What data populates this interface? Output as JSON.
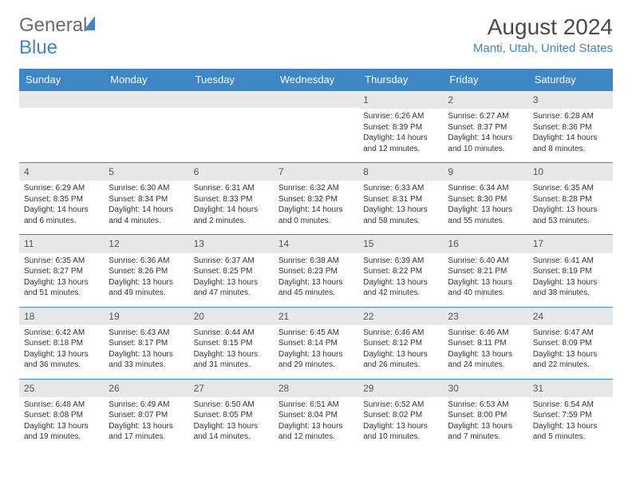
{
  "logo": {
    "text1": "General",
    "text2": "Blue"
  },
  "title": "August 2024",
  "location": "Manti, Utah, United States",
  "colors": {
    "header_bg": "#3e87c4",
    "header_text": "#ffffff",
    "daynum_bg": "#e8e8e8",
    "rule": "#3e87c4",
    "logo_gray": "#6b6b6b",
    "logo_blue": "#3e87c4",
    "title_color": "#4a4a4a",
    "location_color": "#3e87c4",
    "body_text": "#333333"
  },
  "typography": {
    "title_fontsize": 28,
    "location_fontsize": 15,
    "dayheader_fontsize": 13,
    "daynum_fontsize": 12,
    "body_fontsize": 10
  },
  "day_headers": [
    "Sunday",
    "Monday",
    "Tuesday",
    "Wednesday",
    "Thursday",
    "Friday",
    "Saturday"
  ],
  "weeks": [
    [
      null,
      null,
      null,
      null,
      {
        "n": "1",
        "sr": "Sunrise: 6:26 AM",
        "ss": "Sunset: 8:39 PM",
        "dl1": "Daylight: 14 hours",
        "dl2": "and 12 minutes."
      },
      {
        "n": "2",
        "sr": "Sunrise: 6:27 AM",
        "ss": "Sunset: 8:37 PM",
        "dl1": "Daylight: 14 hours",
        "dl2": "and 10 minutes."
      },
      {
        "n": "3",
        "sr": "Sunrise: 6:28 AM",
        "ss": "Sunset: 8:36 PM",
        "dl1": "Daylight: 14 hours",
        "dl2": "and 8 minutes."
      }
    ],
    [
      {
        "n": "4",
        "sr": "Sunrise: 6:29 AM",
        "ss": "Sunset: 8:35 PM",
        "dl1": "Daylight: 14 hours",
        "dl2": "and 6 minutes."
      },
      {
        "n": "5",
        "sr": "Sunrise: 6:30 AM",
        "ss": "Sunset: 8:34 PM",
        "dl1": "Daylight: 14 hours",
        "dl2": "and 4 minutes."
      },
      {
        "n": "6",
        "sr": "Sunrise: 6:31 AM",
        "ss": "Sunset: 8:33 PM",
        "dl1": "Daylight: 14 hours",
        "dl2": "and 2 minutes."
      },
      {
        "n": "7",
        "sr": "Sunrise: 6:32 AM",
        "ss": "Sunset: 8:32 PM",
        "dl1": "Daylight: 14 hours",
        "dl2": "and 0 minutes."
      },
      {
        "n": "8",
        "sr": "Sunrise: 6:33 AM",
        "ss": "Sunset: 8:31 PM",
        "dl1": "Daylight: 13 hours",
        "dl2": "and 58 minutes."
      },
      {
        "n": "9",
        "sr": "Sunrise: 6:34 AM",
        "ss": "Sunset: 8:30 PM",
        "dl1": "Daylight: 13 hours",
        "dl2": "and 55 minutes."
      },
      {
        "n": "10",
        "sr": "Sunrise: 6:35 AM",
        "ss": "Sunset: 8:28 PM",
        "dl1": "Daylight: 13 hours",
        "dl2": "and 53 minutes."
      }
    ],
    [
      {
        "n": "11",
        "sr": "Sunrise: 6:35 AM",
        "ss": "Sunset: 8:27 PM",
        "dl1": "Daylight: 13 hours",
        "dl2": "and 51 minutes."
      },
      {
        "n": "12",
        "sr": "Sunrise: 6:36 AM",
        "ss": "Sunset: 8:26 PM",
        "dl1": "Daylight: 13 hours",
        "dl2": "and 49 minutes."
      },
      {
        "n": "13",
        "sr": "Sunrise: 6:37 AM",
        "ss": "Sunset: 8:25 PM",
        "dl1": "Daylight: 13 hours",
        "dl2": "and 47 minutes."
      },
      {
        "n": "14",
        "sr": "Sunrise: 6:38 AM",
        "ss": "Sunset: 8:23 PM",
        "dl1": "Daylight: 13 hours",
        "dl2": "and 45 minutes."
      },
      {
        "n": "15",
        "sr": "Sunrise: 6:39 AM",
        "ss": "Sunset: 8:22 PM",
        "dl1": "Daylight: 13 hours",
        "dl2": "and 42 minutes."
      },
      {
        "n": "16",
        "sr": "Sunrise: 6:40 AM",
        "ss": "Sunset: 8:21 PM",
        "dl1": "Daylight: 13 hours",
        "dl2": "and 40 minutes."
      },
      {
        "n": "17",
        "sr": "Sunrise: 6:41 AM",
        "ss": "Sunset: 8:19 PM",
        "dl1": "Daylight: 13 hours",
        "dl2": "and 38 minutes."
      }
    ],
    [
      {
        "n": "18",
        "sr": "Sunrise: 6:42 AM",
        "ss": "Sunset: 8:18 PM",
        "dl1": "Daylight: 13 hours",
        "dl2": "and 36 minutes."
      },
      {
        "n": "19",
        "sr": "Sunrise: 6:43 AM",
        "ss": "Sunset: 8:17 PM",
        "dl1": "Daylight: 13 hours",
        "dl2": "and 33 minutes."
      },
      {
        "n": "20",
        "sr": "Sunrise: 6:44 AM",
        "ss": "Sunset: 8:15 PM",
        "dl1": "Daylight: 13 hours",
        "dl2": "and 31 minutes."
      },
      {
        "n": "21",
        "sr": "Sunrise: 6:45 AM",
        "ss": "Sunset: 8:14 PM",
        "dl1": "Daylight: 13 hours",
        "dl2": "and 29 minutes."
      },
      {
        "n": "22",
        "sr": "Sunrise: 6:46 AM",
        "ss": "Sunset: 8:12 PM",
        "dl1": "Daylight: 13 hours",
        "dl2": "and 26 minutes."
      },
      {
        "n": "23",
        "sr": "Sunrise: 6:46 AM",
        "ss": "Sunset: 8:11 PM",
        "dl1": "Daylight: 13 hours",
        "dl2": "and 24 minutes."
      },
      {
        "n": "24",
        "sr": "Sunrise: 6:47 AM",
        "ss": "Sunset: 8:09 PM",
        "dl1": "Daylight: 13 hours",
        "dl2": "and 22 minutes."
      }
    ],
    [
      {
        "n": "25",
        "sr": "Sunrise: 6:48 AM",
        "ss": "Sunset: 8:08 PM",
        "dl1": "Daylight: 13 hours",
        "dl2": "and 19 minutes."
      },
      {
        "n": "26",
        "sr": "Sunrise: 6:49 AM",
        "ss": "Sunset: 8:07 PM",
        "dl1": "Daylight: 13 hours",
        "dl2": "and 17 minutes."
      },
      {
        "n": "27",
        "sr": "Sunrise: 6:50 AM",
        "ss": "Sunset: 8:05 PM",
        "dl1": "Daylight: 13 hours",
        "dl2": "and 14 minutes."
      },
      {
        "n": "28",
        "sr": "Sunrise: 6:51 AM",
        "ss": "Sunset: 8:04 PM",
        "dl1": "Daylight: 13 hours",
        "dl2": "and 12 minutes."
      },
      {
        "n": "29",
        "sr": "Sunrise: 6:52 AM",
        "ss": "Sunset: 8:02 PM",
        "dl1": "Daylight: 13 hours",
        "dl2": "and 10 minutes."
      },
      {
        "n": "30",
        "sr": "Sunrise: 6:53 AM",
        "ss": "Sunset: 8:00 PM",
        "dl1": "Daylight: 13 hours",
        "dl2": "and 7 minutes."
      },
      {
        "n": "31",
        "sr": "Sunrise: 6:54 AM",
        "ss": "Sunset: 7:59 PM",
        "dl1": "Daylight: 13 hours",
        "dl2": "and 5 minutes."
      }
    ]
  ]
}
